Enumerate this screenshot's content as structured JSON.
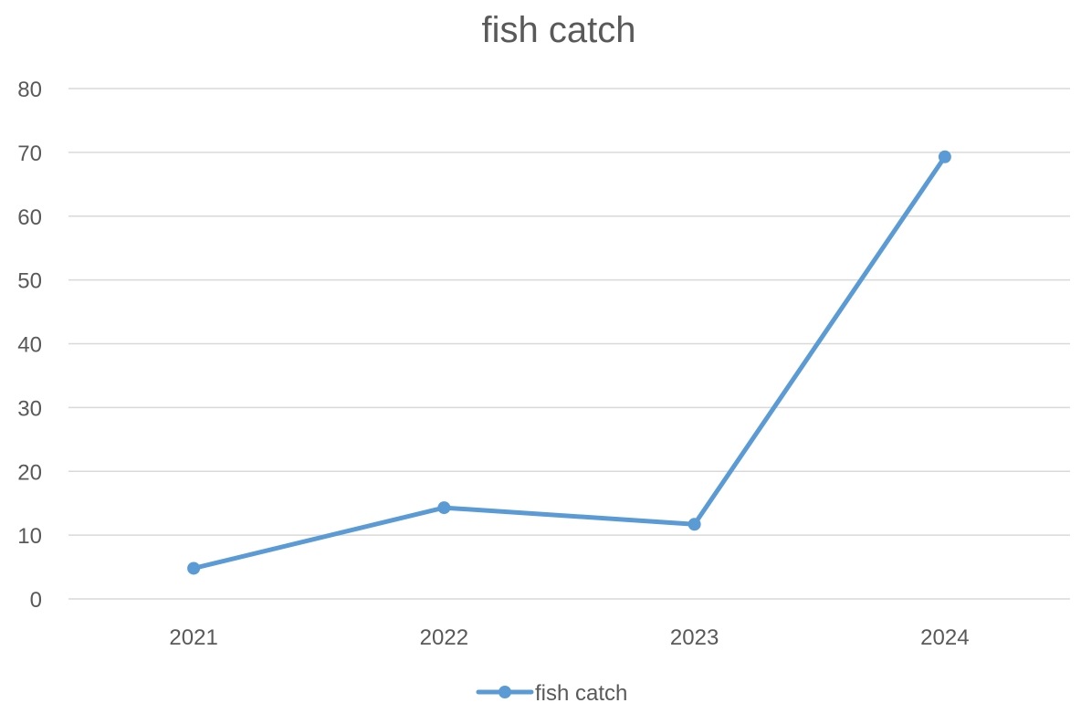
{
  "chart_data": {
    "type": "line",
    "title": "fish catch",
    "xlabel": "",
    "ylabel": "",
    "categories": [
      "2021",
      "2022",
      "2023",
      "2024"
    ],
    "series": [
      {
        "name": "fish catch",
        "values": [
          4.8,
          14.3,
          11.7,
          69.3
        ]
      }
    ],
    "ylim": [
      0,
      80
    ],
    "yticks": [
      0,
      10,
      20,
      30,
      40,
      50,
      60,
      70,
      80
    ],
    "grid": true,
    "legend_position": "bottom",
    "colors": {
      "series": "#5B9BD5",
      "grid": "#D9D9D9",
      "text": "#595959"
    }
  }
}
